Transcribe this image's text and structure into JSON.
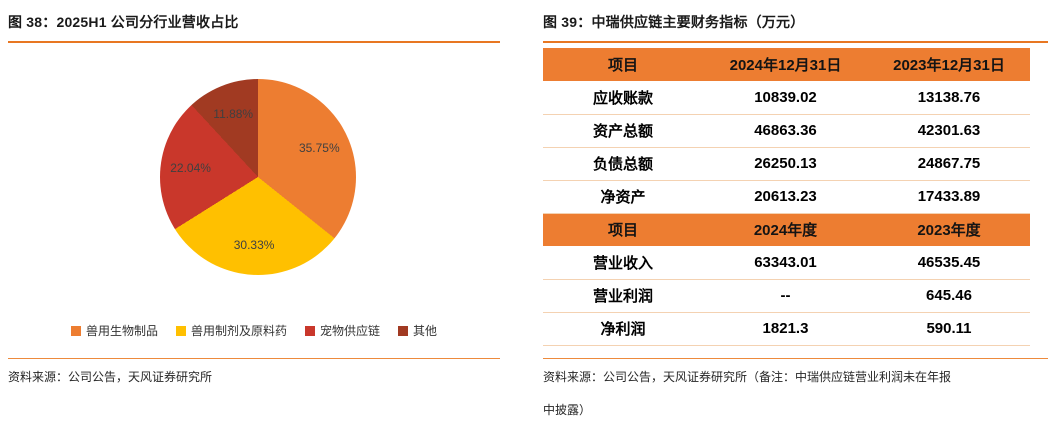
{
  "colors": {
    "accent_rule": "#E87722",
    "table_header_bg": "#ED7D31",
    "pie_orange": "#ED7D31",
    "pie_gold": "#FFC000",
    "pie_red": "#C9372B",
    "pie_dark_red": "#A13A22"
  },
  "figure38": {
    "source": "资料来源：公司公告，天风证券研究所"
  },
  "figure39": {
    "source_lines": [
      "资料来源：公司公告，天风证券研究所（备注：中瑞供应链营业利润未在年报",
      "中披露）"
    ]
  },
  "chart_data": [
    {
      "type": "pie",
      "title": "图 38：2025H1 公司分行业营收占比",
      "labels": [
        "兽用生物制品",
        "兽用制剂及原料药",
        "宠物供应链",
        "其他"
      ],
      "values": [
        35.75,
        30.33,
        22.04,
        11.88
      ],
      "unit": "%",
      "colors": [
        "#ED7D31",
        "#FFC000",
        "#C9372B",
        "#A13A22"
      ],
      "start_angle_deg": 0,
      "direction": "clockwise",
      "legend_position": "bottom"
    },
    {
      "type": "table",
      "title": "图 39：中瑞供应链主要财务指标（万元）",
      "sections": [
        {
          "header": [
            "项目",
            "2024年12月31日",
            "2023年12月31日"
          ],
          "rows": [
            [
              "应收账款",
              "10839.02",
              "13138.76"
            ],
            [
              "资产总额",
              "46863.36",
              "42301.63"
            ],
            [
              "负债总额",
              "26250.13",
              "24867.75"
            ],
            [
              "净资产",
              "20613.23",
              "17433.89"
            ]
          ]
        },
        {
          "header": [
            "项目",
            "2024年度",
            "2023年度"
          ],
          "rows": [
            [
              "营业收入",
              "63343.01",
              "46535.45"
            ],
            [
              "营业利润",
              "--",
              "645.46"
            ],
            [
              "净利润",
              "1821.3",
              "590.11"
            ]
          ]
        }
      ]
    }
  ]
}
